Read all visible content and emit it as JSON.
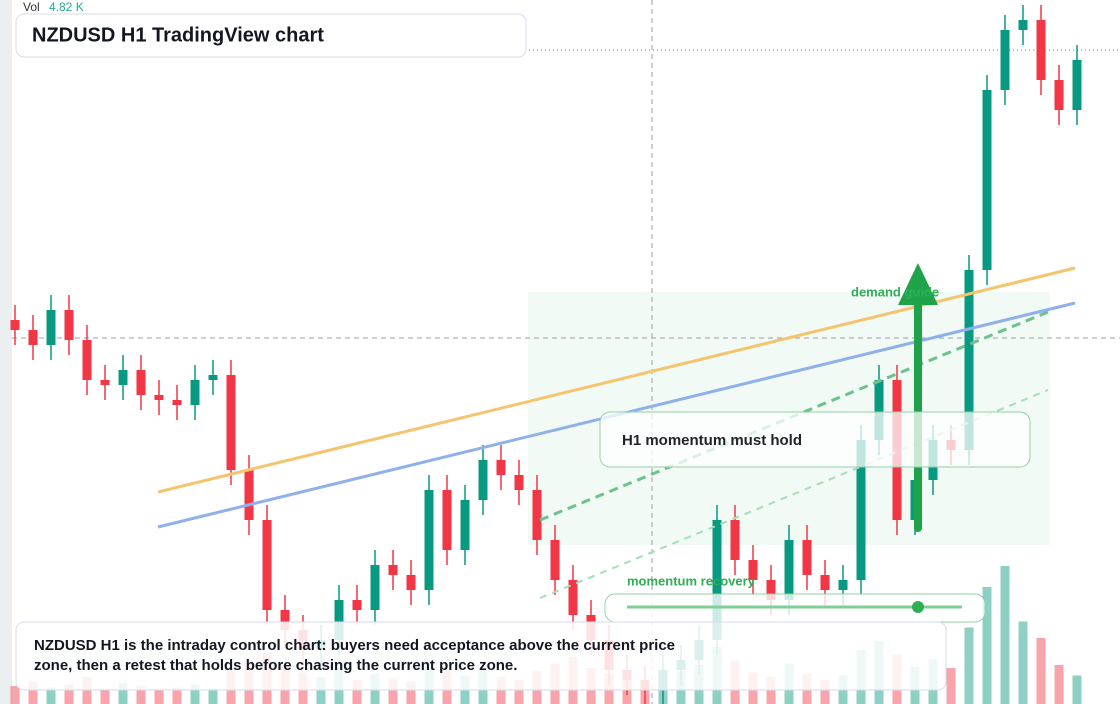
{
  "header": {
    "vol_label": "Vol",
    "vol_value": "4.82 K"
  },
  "chart_data": {
    "type": "candlestick",
    "title": "NZDUSD H1 TradingView chart",
    "ylim": [
      0.58592,
      0.6
    ],
    "volume_ylim": [
      0,
      20
    ],
    "up_color": "#089981",
    "down_color": "#f23645",
    "open": [
      0.5936,
      0.5934,
      0.5931,
      0.5938,
      0.5932,
      0.5924,
      0.5923,
      0.5926,
      0.5921,
      0.592,
      0.5919,
      0.5924,
      0.5925,
      0.5906,
      0.5896,
      0.5878,
      0.5874,
      0.587,
      0.5872,
      0.588,
      0.5878,
      0.5887,
      0.5885,
      0.5882,
      0.5902,
      0.589,
      0.59,
      0.5908,
      0.5905,
      0.5902,
      0.5892,
      0.5884,
      0.5877,
      0.5872,
      0.5866,
      0.5864,
      0.5862,
      0.5866,
      0.5868,
      0.5872,
      0.5896,
      0.5888,
      0.5884,
      0.588,
      0.5892,
      0.5885,
      0.5882,
      0.5884,
      0.5912,
      0.5924,
      0.5896,
      0.5904,
      0.5912,
      0.591,
      0.5946,
      0.5982,
      0.5994,
      0.5996,
      0.5984,
      0.5978
    ],
    "high": [
      0.5939,
      0.5937,
      0.5941,
      0.5941,
      0.5935,
      0.5927,
      0.5929,
      0.5929,
      0.5924,
      0.5923,
      0.5927,
      0.5928,
      0.5928,
      0.5909,
      0.5899,
      0.5881,
      0.5877,
      0.5875,
      0.5883,
      0.5883,
      0.589,
      0.589,
      0.5888,
      0.5905,
      0.5905,
      0.5903,
      0.5911,
      0.5911,
      0.5908,
      0.5905,
      0.5895,
      0.5887,
      0.588,
      0.5875,
      0.5869,
      0.5867,
      0.5869,
      0.5871,
      0.5875,
      0.5899,
      0.5899,
      0.5891,
      0.5887,
      0.5895,
      0.5895,
      0.5888,
      0.5887,
      0.5915,
      0.5927,
      0.5927,
      0.5907,
      0.5915,
      0.5915,
      0.5949,
      0.5985,
      0.5997,
      0.5999,
      0.5999,
      0.5987,
      0.5991
    ],
    "low": [
      0.5931,
      0.5928,
      0.5928,
      0.5929,
      0.5921,
      0.592,
      0.592,
      0.5918,
      0.5917,
      0.5916,
      0.5916,
      0.5921,
      0.5903,
      0.5893,
      0.5875,
      0.5871,
      0.5867,
      0.5867,
      0.5869,
      0.5875,
      0.5875,
      0.5882,
      0.5879,
      0.5879,
      0.5887,
      0.5887,
      0.5897,
      0.5902,
      0.5899,
      0.5889,
      0.5881,
      0.5874,
      0.5869,
      0.5863,
      0.5861,
      0.5859,
      0.5859,
      0.5863,
      0.5865,
      0.5869,
      0.5885,
      0.5881,
      0.5877,
      0.5877,
      0.5882,
      0.5879,
      0.5879,
      0.5881,
      0.5909,
      0.5893,
      0.5893,
      0.5901,
      0.5907,
      0.5907,
      0.5943,
      0.5979,
      0.5991,
      0.5981,
      0.5975,
      0.5975
    ],
    "close": [
      0.5934,
      0.5931,
      0.5938,
      0.5932,
      0.5924,
      0.5923,
      0.5926,
      0.5921,
      0.592,
      0.5919,
      0.5924,
      0.5925,
      0.5906,
      0.5896,
      0.5878,
      0.5874,
      0.587,
      0.5872,
      0.588,
      0.5878,
      0.5887,
      0.5885,
      0.5882,
      0.5902,
      0.589,
      0.59,
      0.5908,
      0.5905,
      0.5902,
      0.5892,
      0.5884,
      0.5877,
      0.5872,
      0.5866,
      0.5864,
      0.5862,
      0.5866,
      0.5868,
      0.5872,
      0.5896,
      0.5888,
      0.5884,
      0.588,
      0.5892,
      0.5885,
      0.5882,
      0.5884,
      0.5912,
      0.5924,
      0.5896,
      0.5904,
      0.5912,
      0.591,
      0.5946,
      0.5982,
      0.5994,
      0.5996,
      0.5984,
      0.5978,
      0.5988
    ],
    "volume": [
      1.2,
      1.5,
      1.1,
      1.3,
      1.8,
      1.0,
      1.4,
      1.2,
      0.9,
      1.1,
      1.3,
      1.0,
      2.2,
      2.8,
      3.4,
      2.6,
      2.1,
      1.8,
      2.4,
      1.6,
      2.0,
      1.7,
      1.5,
      2.9,
      2.3,
      1.9,
      2.5,
      1.8,
      1.6,
      2.2,
      2.7,
      3.1,
      2.4,
      2.0,
      1.7,
      1.5,
      1.9,
      2.2,
      2.6,
      3.8,
      2.9,
      2.1,
      1.8,
      2.7,
      2.0,
      1.6,
      1.9,
      3.6,
      4.2,
      3.3,
      2.5,
      3.0,
      2.4,
      5.1,
      7.8,
      9.2,
      5.5,
      4.4,
      2.6,
      1.9
    ]
  },
  "annotations": {
    "demand_label": "demand guide",
    "momentum_box": "H1 momentum must hold",
    "slider_label": "momentum recovery",
    "note": "NZDUSD H1 is the intraday control chart: buyers need acceptance above the current price zone, then a retest that holds before chasing the current price zone."
  }
}
